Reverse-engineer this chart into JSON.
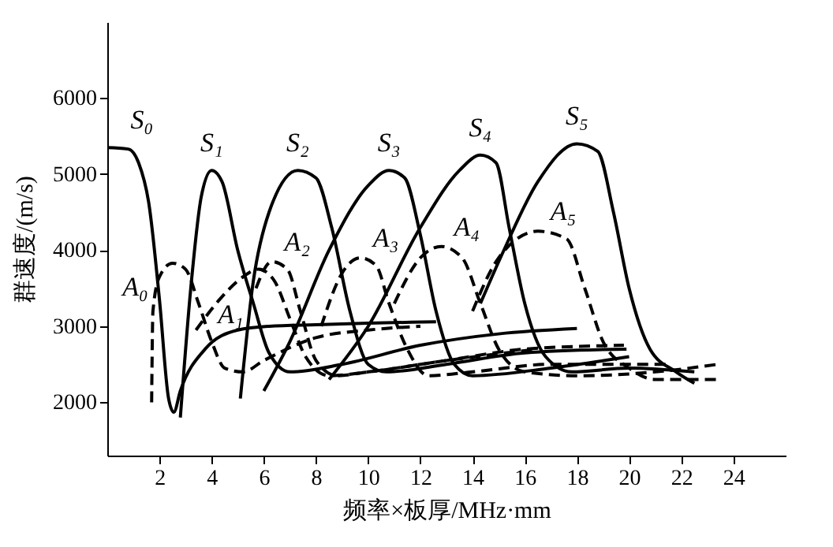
{
  "chart_data": {
    "type": "line",
    "xlabel": "频率×板厚/MHz·mm",
    "ylabel": "群速度/(m/s)",
    "xlim": [
      0,
      26
    ],
    "ylim": [
      1300,
      7000
    ],
    "xticks": [
      2,
      4,
      6,
      8,
      10,
      12,
      14,
      16,
      18,
      20,
      22,
      24
    ],
    "yticks": [
      2000,
      3000,
      4000,
      5000,
      6000
    ],
    "grid": false,
    "marker": "none",
    "series": [
      {
        "name": "S₀",
        "color": "#000000",
        "line_style": "solid",
        "x": [
          0,
          0.8,
          1.2,
          1.6,
          2,
          2.35,
          2.55,
          2.8,
          3.75,
          5,
          6.2,
          8,
          10,
          12.6
        ],
        "values": [
          5350,
          5330,
          5150,
          4600,
          3350,
          2050,
          1870,
          2150,
          2700,
          2950,
          3000,
          3020,
          3040,
          3060
        ]
      },
      {
        "name": "S₁",
        "color": "#000000",
        "line_style": "solid",
        "x": [
          2.8,
          3.2,
          3.6,
          4,
          4.4,
          5,
          5.6,
          6.2,
          7,
          9,
          12,
          15,
          18
        ],
        "values": [
          1800,
          3500,
          4700,
          5050,
          4900,
          4000,
          3300,
          2650,
          2400,
          2500,
          2750,
          2900,
          2970
        ]
      },
      {
        "name": "S₂",
        "color": "#000000",
        "line_style": "solid",
        "x": [
          5.1,
          5.6,
          6.2,
          7.3,
          8,
          8.6,
          9.3,
          10,
          10.7,
          13,
          16,
          19.9
        ],
        "values": [
          2050,
          3600,
          4500,
          5050,
          4950,
          4300,
          3200,
          2500,
          2400,
          2500,
          2650,
          2700
        ]
      },
      {
        "name": "S₃",
        "color": "#000000",
        "line_style": "solid",
        "x": [
          6,
          7,
          8.5,
          10,
          10.8,
          11.4,
          12,
          12.6,
          13.3,
          14,
          17,
          20
        ],
        "values": [
          2150,
          2800,
          4000,
          4850,
          5050,
          4950,
          4200,
          3200,
          2500,
          2350,
          2450,
          2600
        ]
      },
      {
        "name": "S₄",
        "color": "#000000",
        "line_style": "solid",
        "x": [
          8.5,
          10,
          12,
          13.5,
          14.3,
          14.9,
          15.4,
          16,
          16.8,
          17.8,
          20,
          22.5
        ],
        "values": [
          2300,
          3000,
          4300,
          5050,
          5250,
          5150,
          4300,
          3300,
          2600,
          2400,
          2450,
          2400
        ]
      },
      {
        "name": "S₅",
        "color": "#000000",
        "line_style": "solid",
        "x": [
          14.3,
          15.2,
          16.5,
          18,
          18.8,
          19.4,
          20,
          20.8,
          21.8,
          22.5
        ],
        "values": [
          3300,
          4000,
          4900,
          5400,
          5300,
          4500,
          3500,
          2700,
          2400,
          2250
        ]
      },
      {
        "name": "A₀",
        "color": "#000000",
        "line_style": "dashed",
        "x": [
          1.7,
          1.75,
          2,
          2.5,
          3,
          3.5,
          4,
          4.5,
          5.2,
          6,
          8,
          10,
          12
        ],
        "values": [
          2000,
          3200,
          3650,
          3830,
          3750,
          3300,
          2800,
          2450,
          2400,
          2550,
          2850,
          2950,
          3000
        ]
      },
      {
        "name": "A₁",
        "color": "#000000",
        "line_style": "dashed",
        "x": [
          3.4,
          4.3,
          5.2,
          5.8,
          6.4,
          7,
          7.6,
          8.5,
          10,
          13,
          16.5
        ],
        "values": [
          2950,
          3350,
          3650,
          3750,
          3600,
          3100,
          2600,
          2350,
          2400,
          2550,
          2700
        ]
      },
      {
        "name": "A₂",
        "color": "#000000",
        "line_style": "dashed",
        "x": [
          5.7,
          6.3,
          6.9,
          7.4,
          8,
          8.8,
          10,
          13,
          16,
          19.8
        ],
        "values": [
          3500,
          3850,
          3750,
          3200,
          2550,
          2350,
          2400,
          2550,
          2700,
          2750
        ]
      },
      {
        "name": "A₃",
        "color": "#000000",
        "line_style": "dashed",
        "x": [
          8.2,
          9,
          9.7,
          10.3,
          10.8,
          11.5,
          12.3,
          14,
          17,
          21.5
        ],
        "values": [
          3000,
          3700,
          3900,
          3800,
          3300,
          2700,
          2350,
          2400,
          2500,
          2500
        ]
      },
      {
        "name": "A₄",
        "color": "#000000",
        "line_style": "dashed",
        "x": [
          11,
          12,
          12.8,
          13.6,
          14.3,
          15,
          16,
          18,
          21,
          23.4
        ],
        "values": [
          3300,
          3900,
          4050,
          3900,
          3300,
          2700,
          2400,
          2350,
          2400,
          2500
        ]
      },
      {
        "name": "A₅",
        "color": "#000000",
        "line_style": "dashed",
        "x": [
          14,
          15,
          16.5,
          17.6,
          18.3,
          19,
          20,
          21,
          23.5
        ],
        "values": [
          3200,
          3900,
          4250,
          4150,
          3500,
          2800,
          2450,
          2300,
          2300
        ]
      }
    ]
  }
}
